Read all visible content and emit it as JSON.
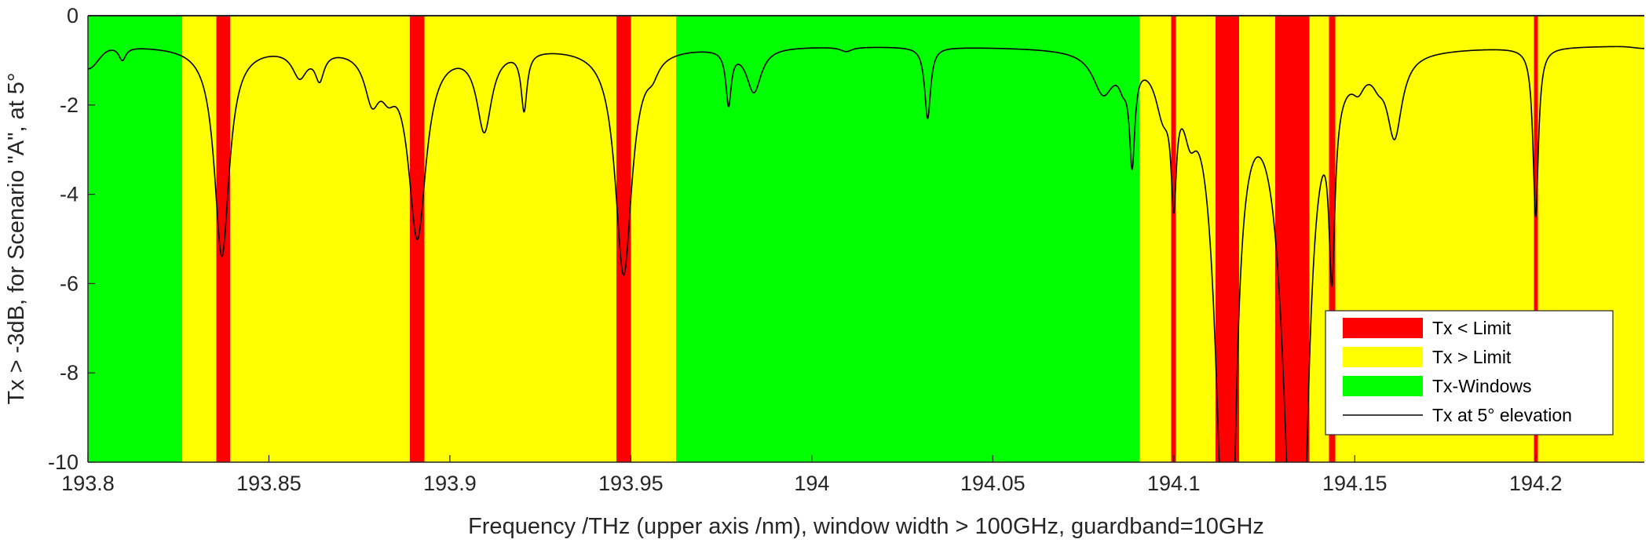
{
  "chart_data": {
    "type": "line",
    "title": "",
    "xlabel": "Frequency  /THz  (upper axis  /nm), window width > 100GHz, guardband=10GHz",
    "ylabel": "Tx > -3dB, for Scenario \"A\", at 5°",
    "xlim": [
      193.8,
      194.23
    ],
    "ylim": [
      -10,
      0
    ],
    "xticks": [
      193.8,
      193.85,
      193.9,
      193.95,
      194,
      194.05,
      194.1,
      194.15,
      194.2
    ],
    "xtick_labels": [
      "193.8",
      "193.85",
      "193.9",
      "193.95",
      "194",
      "194.05",
      "194.1",
      "194.15",
      "194.2"
    ],
    "yticks": [
      0,
      -2,
      -4,
      -6,
      -8,
      -10
    ],
    "ytick_labels": [
      "0",
      "-2",
      "-4",
      "-6",
      "-8",
      "-10"
    ],
    "grid": false,
    "legend_position": "bottom-right",
    "colors": {
      "below_limit": "#ff0000",
      "above_limit": "#ffff00",
      "window": "#00ff00",
      "curve": "#000000"
    },
    "regions": [
      {
        "category": "window",
        "x0": 193.8,
        "x1": 193.826
      },
      {
        "category": "above_limit",
        "x0": 193.826,
        "x1": 193.8355
      },
      {
        "category": "below_limit",
        "x0": 193.8355,
        "x1": 193.8393
      },
      {
        "category": "above_limit",
        "x0": 193.8393,
        "x1": 193.889
      },
      {
        "category": "below_limit",
        "x0": 193.889,
        "x1": 193.893
      },
      {
        "category": "above_limit",
        "x0": 193.893,
        "x1": 193.946
      },
      {
        "category": "below_limit",
        "x0": 193.946,
        "x1": 193.95
      },
      {
        "category": "above_limit",
        "x0": 193.95,
        "x1": 193.9625
      },
      {
        "category": "window",
        "x0": 193.9625,
        "x1": 194.0905
      },
      {
        "category": "above_limit",
        "x0": 194.0905,
        "x1": 194.0993
      },
      {
        "category": "below_limit",
        "x0": 194.0993,
        "x1": 194.1006
      },
      {
        "category": "above_limit",
        "x0": 194.1006,
        "x1": 194.1115
      },
      {
        "category": "below_limit",
        "x0": 194.1115,
        "x1": 194.118
      },
      {
        "category": "above_limit",
        "x0": 194.118,
        "x1": 194.128
      },
      {
        "category": "below_limit",
        "x0": 194.128,
        "x1": 194.1375
      },
      {
        "category": "above_limit",
        "x0": 194.1375,
        "x1": 194.1429
      },
      {
        "category": "below_limit",
        "x0": 194.1429,
        "x1": 194.1446
      },
      {
        "category": "above_limit",
        "x0": 194.1446,
        "x1": 194.1995
      },
      {
        "category": "below_limit",
        "x0": 194.1995,
        "x1": 194.2006
      },
      {
        "category": "above_limit",
        "x0": 194.2006,
        "x1": 194.23
      }
    ],
    "series": [
      {
        "name": "Tx at 5° elevation",
        "baseline": -0.65,
        "edges": [
          {
            "x": 193.8,
            "y": -1.15
          },
          {
            "x": 194.23,
            "y": -0.7
          }
        ],
        "absorption_lines": [
          {
            "x": 193.8095,
            "depth": 0.3,
            "width": 0.0012
          },
          {
            "x": 193.837,
            "depth": 4.7,
            "width": 0.0025
          },
          {
            "x": 193.8585,
            "depth": 0.6,
            "width": 0.0025
          },
          {
            "x": 193.864,
            "depth": 0.6,
            "width": 0.0015
          },
          {
            "x": 193.8785,
            "depth": 1.0,
            "width": 0.0025
          },
          {
            "x": 193.883,
            "depth": 0.6,
            "width": 0.0025
          },
          {
            "x": 193.891,
            "depth": 4.2,
            "width": 0.003
          },
          {
            "x": 193.9095,
            "depth": 1.8,
            "width": 0.0025
          },
          {
            "x": 193.9205,
            "depth": 1.3,
            "width": 0.001
          },
          {
            "x": 193.948,
            "depth": 5.1,
            "width": 0.0028
          },
          {
            "x": 193.956,
            "depth": 0.3,
            "width": 0.002
          },
          {
            "x": 193.977,
            "depth": 1.2,
            "width": 0.0009
          },
          {
            "x": 193.984,
            "depth": 1.0,
            "width": 0.0025
          },
          {
            "x": 194.0095,
            "depth": 0.1,
            "width": 0.002
          },
          {
            "x": 194.032,
            "depth": 1.6,
            "width": 0.001
          },
          {
            "x": 194.0805,
            "depth": 0.9,
            "width": 0.0035
          },
          {
            "x": 194.086,
            "depth": 0.4,
            "width": 0.0015
          },
          {
            "x": 194.0885,
            "depth": 2.2,
            "width": 0.0009
          },
          {
            "x": 194.097,
            "depth": 1.0,
            "width": 0.0025
          },
          {
            "x": 194.1,
            "depth": 2.5,
            "width": 0.0009
          },
          {
            "x": 194.1045,
            "depth": 1.0,
            "width": 0.0022
          },
          {
            "x": 194.114,
            "depth": 10.0,
            "width": 0.003
          },
          {
            "x": 194.116,
            "depth": 5.0,
            "width": 0.0015
          },
          {
            "x": 194.133,
            "depth": 10.0,
            "width": 0.0035
          },
          {
            "x": 194.1355,
            "depth": 6.0,
            "width": 0.002
          },
          {
            "x": 194.1437,
            "depth": 3.9,
            "width": 0.001
          },
          {
            "x": 194.151,
            "depth": 0.4,
            "width": 0.002
          },
          {
            "x": 194.1565,
            "depth": 0.3,
            "width": 0.002
          },
          {
            "x": 194.161,
            "depth": 1.8,
            "width": 0.0025
          },
          {
            "x": 194.2,
            "depth": 3.8,
            "width": 0.0009
          }
        ]
      }
    ],
    "legend": [
      {
        "label": "Tx < Limit",
        "kind": "patch",
        "category": "below_limit"
      },
      {
        "label": "Tx > Limit",
        "kind": "patch",
        "category": "above_limit"
      },
      {
        "label": "Tx-Windows",
        "kind": "patch",
        "category": "window"
      },
      {
        "label": "Tx at 5° elevation",
        "kind": "line",
        "category": "curve"
      }
    ]
  }
}
